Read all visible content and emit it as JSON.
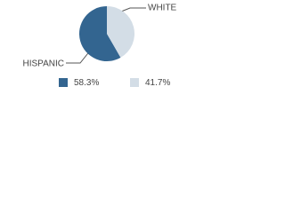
{
  "chart_data": {
    "type": "pie",
    "categories": [
      "HISPANIC",
      "WHITE"
    ],
    "values": [
      58.3,
      41.7
    ],
    "value_labels": [
      "58.3%",
      "41.7%"
    ],
    "colors": [
      "#336590",
      "#d3dde6"
    ]
  }
}
